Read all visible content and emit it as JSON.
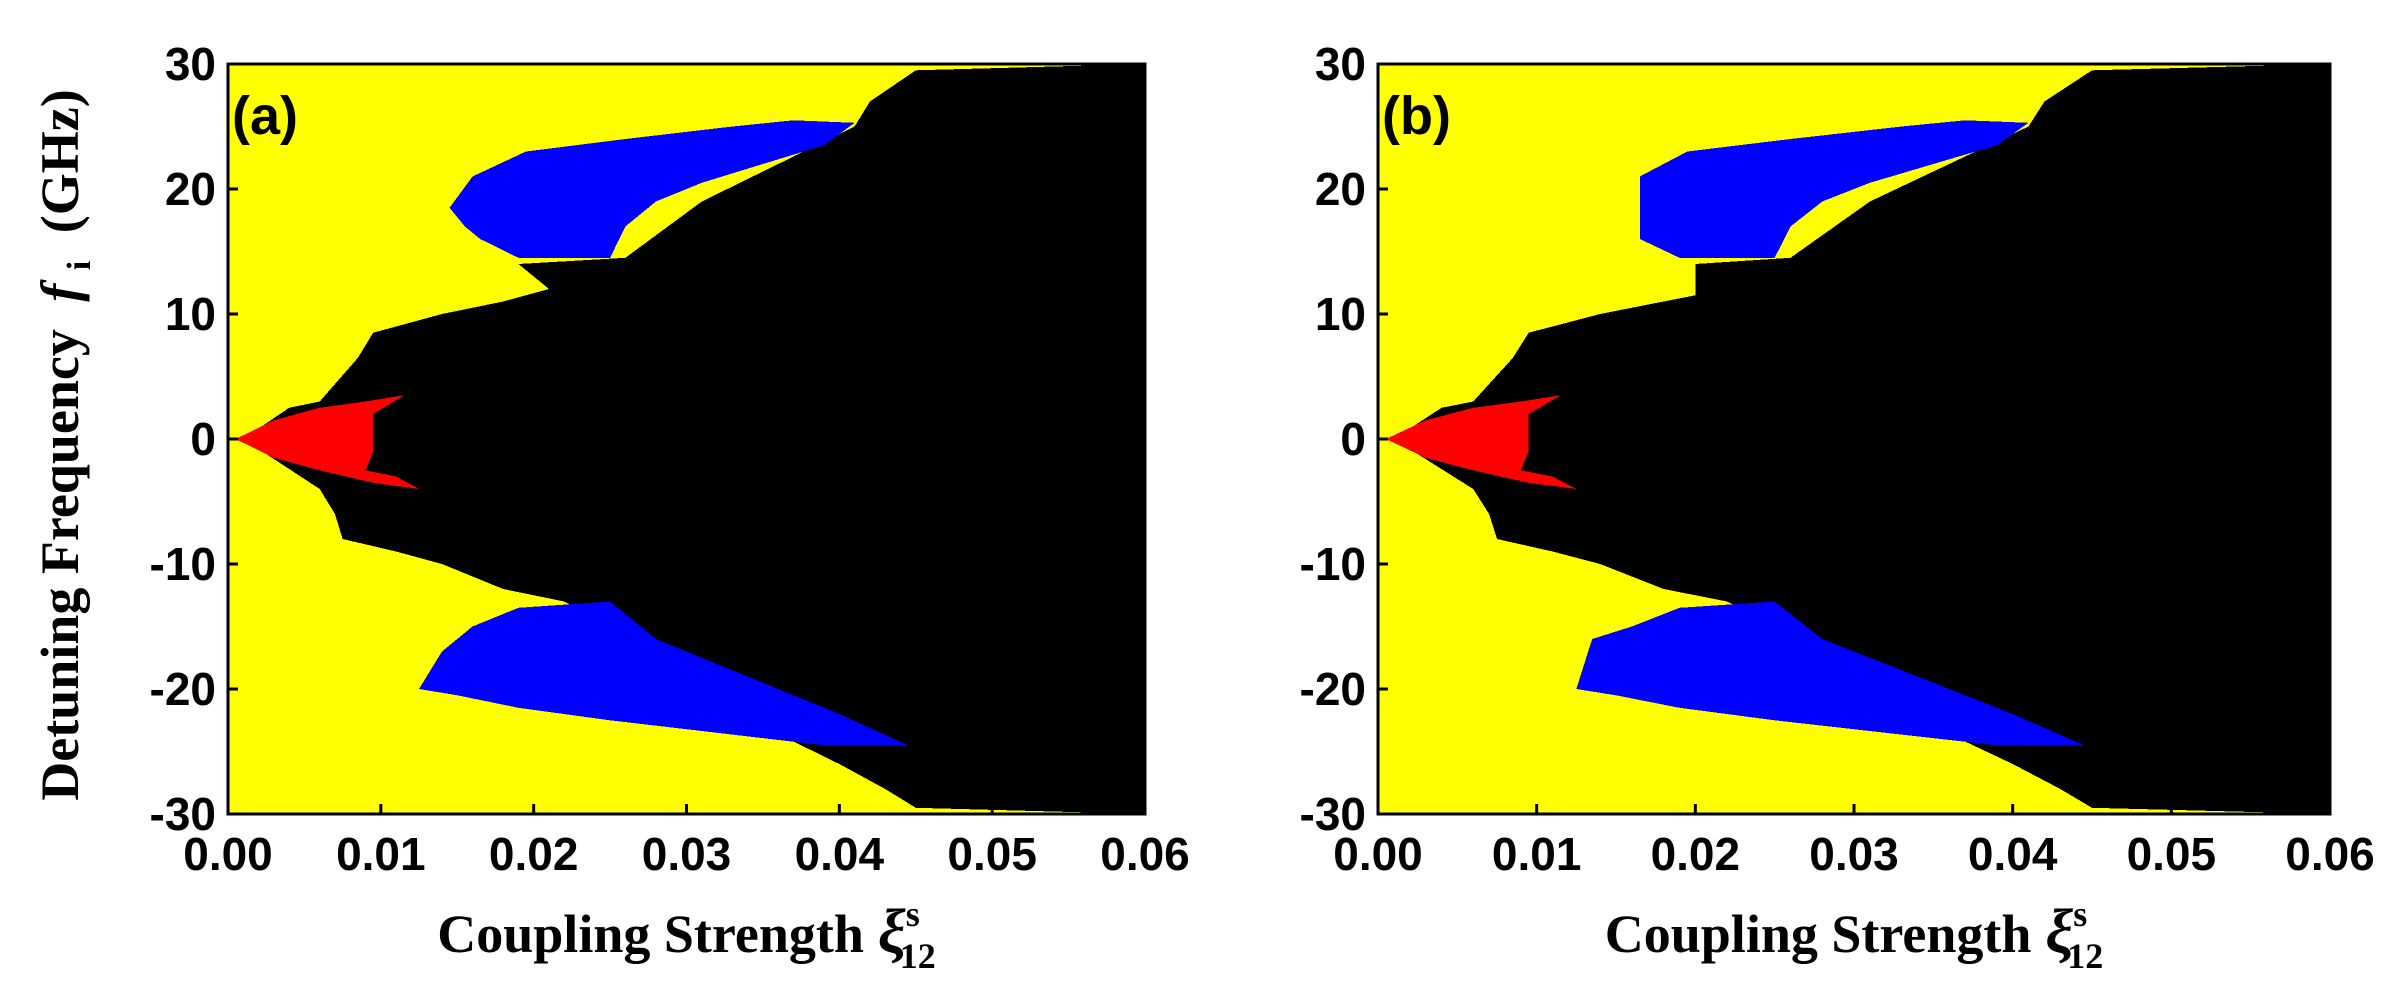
{
  "chart_data": [
    {
      "panel_label": "(a)",
      "type": "heatmap",
      "xlabel": "Coupling Strength",
      "xlabel_symbol": "ξ",
      "xlabel_sup": "s",
      "xlabel_sub": "12",
      "ylabel": "Detuning Frequency",
      "ylabel_symbol": "f",
      "ylabel_sub": "i",
      "ylabel_unit": "(GHz)",
      "xlim": [
        0,
        0.06
      ],
      "ylim": [
        -30,
        30
      ],
      "xticks": [
        "0.00",
        "0.01",
        "0.02",
        "0.03",
        "0.04",
        "0.05",
        "0.06"
      ],
      "yticks": [
        "-30",
        "-20",
        "-10",
        "0",
        "10",
        "20",
        "30"
      ],
      "region_colors": {
        "background": "#ffff00",
        "black": "#000000",
        "blue": "#0000ff",
        "red": "#ff0000"
      },
      "regions": {
        "black": [
          [
            0.001,
            0
          ],
          [
            0.004,
            2.5
          ],
          [
            0.006,
            3
          ],
          [
            0.0085,
            6.5
          ],
          [
            0.0095,
            8.5
          ],
          [
            0.011,
            9
          ],
          [
            0.014,
            10
          ],
          [
            0.018,
            11
          ],
          [
            0.021,
            12
          ],
          [
            0.019,
            14
          ],
          [
            0.026,
            14.5
          ],
          [
            0.031,
            19
          ],
          [
            0.036,
            22
          ],
          [
            0.041,
            25
          ],
          [
            0.042,
            27
          ],
          [
            0.045,
            29.5
          ],
          [
            0.06,
            30
          ],
          [
            0.06,
            -30
          ],
          [
            0.045,
            -29.5
          ],
          [
            0.043,
            -28
          ],
          [
            0.04,
            -26
          ],
          [
            0.035,
            -23
          ],
          [
            0.03,
            -20
          ],
          [
            0.025,
            -15
          ],
          [
            0.022,
            -13
          ],
          [
            0.018,
            -12
          ],
          [
            0.014,
            -10
          ],
          [
            0.011,
            -9
          ],
          [
            0.0075,
            -8
          ],
          [
            0.007,
            -6
          ],
          [
            0.006,
            -4
          ],
          [
            0.0035,
            -2
          ],
          [
            0.001,
            0
          ]
        ],
        "blue": [
          [
            [
              0.0145,
              18.5
            ],
            [
              0.016,
              21
            ],
            [
              0.0195,
              23
            ],
            [
              0.026,
              24
            ],
            [
              0.033,
              25
            ],
            [
              0.037,
              25.5
            ],
            [
              0.041,
              25.3
            ],
            [
              0.039,
              23.5
            ],
            [
              0.035,
              22
            ],
            [
              0.031,
              20.5
            ],
            [
              0.028,
              19
            ],
            [
              0.026,
              17
            ],
            [
              0.025,
              14.5
            ],
            [
              0.019,
              14.5
            ],
            [
              0.0165,
              16
            ],
            [
              0.0155,
              17
            ]
          ],
          [
            [
              0.0125,
              -20
            ],
            [
              0.014,
              -17
            ],
            [
              0.016,
              -15
            ],
            [
              0.019,
              -13.5
            ],
            [
              0.025,
              -13
            ],
            [
              0.028,
              -16
            ],
            [
              0.032,
              -18
            ],
            [
              0.036,
              -20
            ],
            [
              0.04,
              -22
            ],
            [
              0.0445,
              -24.5
            ],
            [
              0.039,
              -24.5
            ],
            [
              0.032,
              -23.5
            ],
            [
              0.025,
              -22.5
            ],
            [
              0.019,
              -21.5
            ],
            [
              0.015,
              -20.5
            ]
          ]
        ],
        "red": [
          [
            0.0005,
            0
          ],
          [
            0.003,
            1.5
          ],
          [
            0.006,
            2.5
          ],
          [
            0.009,
            3
          ],
          [
            0.0115,
            3.5
          ],
          [
            0.0095,
            2
          ],
          [
            0.0095,
            -1
          ],
          [
            0.009,
            -2.5
          ],
          [
            0.011,
            -3
          ],
          [
            0.0125,
            -4
          ],
          [
            0.0095,
            -3.5
          ],
          [
            0.006,
            -2.5
          ],
          [
            0.003,
            -1.5
          ]
        ]
      }
    },
    {
      "panel_label": "(b)",
      "type": "heatmap",
      "xlabel": "Coupling Strength",
      "xlabel_symbol": "ξ",
      "xlabel_sup": "s",
      "xlabel_sub": "12",
      "xlim": [
        0,
        0.06
      ],
      "ylim": [
        -30,
        30
      ],
      "xticks": [
        "0.00",
        "0.01",
        "0.02",
        "0.03",
        "0.04",
        "0.05",
        "0.06"
      ],
      "yticks": [
        "-30",
        "-20",
        "-10",
        "0",
        "10",
        "20",
        "30"
      ],
      "region_colors": {
        "background": "#ffff00",
        "black": "#000000",
        "blue": "#0000ff",
        "red": "#ff0000"
      },
      "regions": {
        "black": [
          [
            0.001,
            0
          ],
          [
            0.004,
            2.5
          ],
          [
            0.006,
            3
          ],
          [
            0.0085,
            6.5
          ],
          [
            0.0095,
            8.5
          ],
          [
            0.011,
            9
          ],
          [
            0.014,
            10
          ],
          [
            0.018,
            11
          ],
          [
            0.02,
            11.5
          ],
          [
            0.02,
            14
          ],
          [
            0.026,
            14.5
          ],
          [
            0.031,
            19
          ],
          [
            0.036,
            22
          ],
          [
            0.041,
            25
          ],
          [
            0.042,
            27
          ],
          [
            0.045,
            29.5
          ],
          [
            0.06,
            30
          ],
          [
            0.06,
            -30
          ],
          [
            0.045,
            -29.5
          ],
          [
            0.043,
            -28
          ],
          [
            0.04,
            -26
          ],
          [
            0.035,
            -23
          ],
          [
            0.03,
            -20
          ],
          [
            0.025,
            -15
          ],
          [
            0.022,
            -13
          ],
          [
            0.018,
            -12
          ],
          [
            0.014,
            -10
          ],
          [
            0.011,
            -9
          ],
          [
            0.0075,
            -8
          ],
          [
            0.007,
            -6
          ],
          [
            0.006,
            -4
          ],
          [
            0.0035,
            -2
          ],
          [
            0.001,
            0
          ]
        ],
        "blue": [
          [
            [
              0.0165,
              21
            ],
            [
              0.0195,
              23
            ],
            [
              0.026,
              24
            ],
            [
              0.033,
              25
            ],
            [
              0.037,
              25.5
            ],
            [
              0.041,
              25.3
            ],
            [
              0.039,
              23.5
            ],
            [
              0.035,
              22
            ],
            [
              0.031,
              20.5
            ],
            [
              0.028,
              19
            ],
            [
              0.026,
              17
            ],
            [
              0.025,
              14.5
            ],
            [
              0.019,
              14.5
            ],
            [
              0.0165,
              16
            ]
          ],
          [
            [
              0.0125,
              -20
            ],
            [
              0.0135,
              -16
            ],
            [
              0.016,
              -15
            ],
            [
              0.019,
              -13.5
            ],
            [
              0.025,
              -13
            ],
            [
              0.028,
              -16
            ],
            [
              0.032,
              -18
            ],
            [
              0.036,
              -20
            ],
            [
              0.04,
              -22
            ],
            [
              0.0445,
              -24.5
            ],
            [
              0.039,
              -24.5
            ],
            [
              0.032,
              -23.5
            ],
            [
              0.025,
              -22.5
            ],
            [
              0.019,
              -21.5
            ],
            [
              0.015,
              -20.5
            ]
          ]
        ],
        "red": [
          [
            0.0005,
            0
          ],
          [
            0.003,
            1.5
          ],
          [
            0.006,
            2.5
          ],
          [
            0.009,
            3
          ],
          [
            0.0115,
            3.5
          ],
          [
            0.0095,
            2
          ],
          [
            0.0095,
            -1
          ],
          [
            0.009,
            -2.5
          ],
          [
            0.011,
            -3
          ],
          [
            0.0125,
            -4
          ],
          [
            0.0095,
            -3.5
          ],
          [
            0.006,
            -2.5
          ],
          [
            0.003,
            -1.5
          ]
        ]
      }
    }
  ]
}
